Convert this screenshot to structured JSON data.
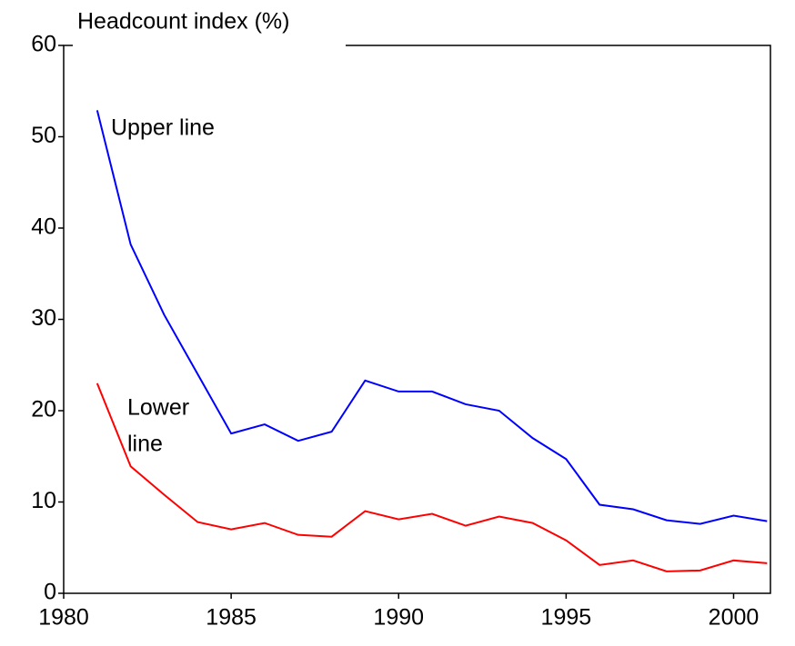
{
  "chart_data": {
    "type": "line",
    "title": "Headcount index (%)",
    "x": [
      1981,
      1982,
      1983,
      1984,
      1985,
      1986,
      1987,
      1988,
      1989,
      1990,
      1991,
      1992,
      1993,
      1994,
      1995,
      1996,
      1997,
      1998,
      1999,
      2000,
      2001
    ],
    "series": [
      {
        "name": "Upper line",
        "color": "#0000ff",
        "values": [
          52.9,
          38.2,
          30.5,
          24.0,
          17.5,
          18.5,
          16.7,
          17.7,
          23.3,
          22.1,
          22.1,
          20.7,
          20.0,
          17.0,
          14.7,
          9.7,
          9.2,
          8.0,
          7.6,
          8.5,
          7.9
        ]
      },
      {
        "name": "Lower line",
        "color": "#ff0000",
        "values": [
          23.0,
          13.9,
          10.8,
          7.8,
          7.0,
          7.7,
          6.4,
          6.2,
          9.0,
          8.1,
          8.7,
          7.4,
          8.4,
          7.7,
          5.8,
          3.1,
          3.6,
          2.4,
          2.5,
          3.6,
          3.3
        ]
      }
    ],
    "annotations": [
      {
        "lines": [
          "Upper line"
        ]
      },
      {
        "lines": [
          "Lower",
          "line"
        ]
      }
    ],
    "xlim": [
      1980,
      2001.1
    ],
    "xticks": [
      1980,
      1985,
      1990,
      1995,
      2000
    ],
    "ylim": [
      0,
      60
    ],
    "yticks": [
      0,
      10,
      20,
      30,
      40,
      50,
      60
    ],
    "grid": false
  }
}
